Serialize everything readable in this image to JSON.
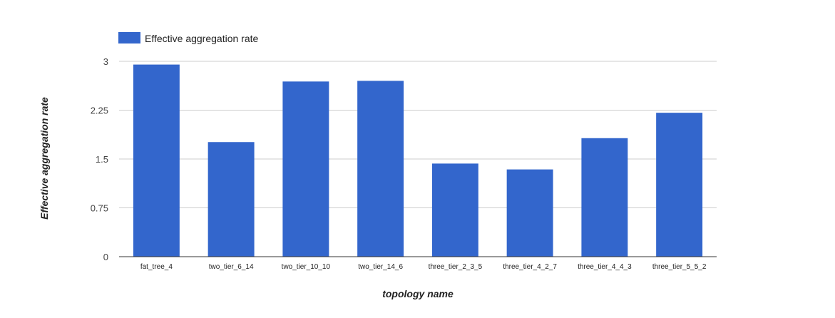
{
  "chart_data": {
    "type": "bar",
    "categories": [
      "fat_tree_4",
      "two_tier_6_14",
      "two_tier_10_10",
      "two_tier_14_6",
      "three_tier_2_3_5",
      "three_tier_4_2_7",
      "three_tier_4_4_3",
      "three_tier_5_5_2"
    ],
    "series": [
      {
        "name": "Effective aggregation rate",
        "color": "#3366cc",
        "values": [
          2.95,
          1.76,
          2.69,
          2.7,
          1.43,
          1.34,
          1.82,
          2.21
        ]
      }
    ],
    "xlabel": "topology name",
    "ylabel": "Effective aggregation rate",
    "ylim": [
      0,
      3
    ],
    "yticks": [
      "0",
      "0.75",
      "1.5",
      "2.25",
      "3"
    ],
    "ytick_values": [
      0,
      0.75,
      1.5,
      2.25,
      3
    ],
    "grid": true,
    "legend_position": "top-left",
    "colors": {
      "bar": "#3366cc",
      "grid": "#cccccc",
      "axis": "#333333"
    }
  }
}
